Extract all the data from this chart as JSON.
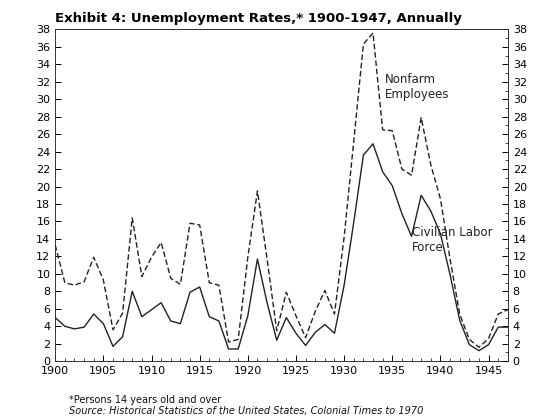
{
  "title": "Exhibit 4: Unemployment Rates,* 1900-1947, Annually",
  "footnote1": "*Persons 14 years old and over",
  "footnote2": "Source: Historical Statistics of the United States, Colonial Times to 1970",
  "ylim": [
    0,
    38
  ],
  "yticks": [
    0,
    2,
    4,
    6,
    8,
    10,
    12,
    14,
    16,
    18,
    20,
    22,
    24,
    26,
    28,
    30,
    32,
    34,
    36,
    38
  ],
  "xticks": [
    1900,
    1905,
    1910,
    1915,
    1920,
    1925,
    1930,
    1935,
    1940,
    1945
  ],
  "years": [
    1900,
    1901,
    1902,
    1903,
    1904,
    1905,
    1906,
    1907,
    1908,
    1909,
    1910,
    1911,
    1912,
    1913,
    1914,
    1915,
    1916,
    1917,
    1918,
    1919,
    1920,
    1921,
    1922,
    1923,
    1924,
    1925,
    1926,
    1927,
    1928,
    1929,
    1930,
    1931,
    1932,
    1933,
    1934,
    1935,
    1936,
    1937,
    1938,
    1939,
    1940,
    1941,
    1942,
    1943,
    1944,
    1945,
    1946,
    1947
  ],
  "civilian_labor_force": [
    5.0,
    4.0,
    3.7,
    3.9,
    5.4,
    4.3,
    1.7,
    2.8,
    8.0,
    5.1,
    5.9,
    6.7,
    4.6,
    4.3,
    7.9,
    8.5,
    5.1,
    4.6,
    1.4,
    1.4,
    5.2,
    11.7,
    6.7,
    2.4,
    5.0,
    3.2,
    1.8,
    3.3,
    4.2,
    3.2,
    8.7,
    15.9,
    23.6,
    24.9,
    21.7,
    20.1,
    16.9,
    14.3,
    19.0,
    17.2,
    14.6,
    9.9,
    4.7,
    1.9,
    1.2,
    1.9,
    3.9,
    3.9
  ],
  "nonfarm_employees": [
    13.3,
    9.0,
    8.7,
    9.1,
    11.9,
    9.3,
    3.6,
    5.5,
    16.4,
    9.7,
    11.9,
    13.6,
    9.5,
    8.8,
    15.8,
    15.6,
    9.0,
    8.7,
    2.2,
    2.5,
    11.9,
    19.5,
    11.7,
    3.5,
    7.9,
    5.2,
    2.7,
    5.7,
    8.1,
    5.4,
    14.2,
    25.2,
    36.3,
    37.6,
    26.5,
    26.4,
    22.0,
    21.3,
    27.9,
    22.5,
    18.6,
    11.7,
    5.4,
    2.5,
    1.6,
    2.6,
    5.4,
    5.9
  ],
  "label_nonfarm": "Nonfarm\nEmployees",
  "label_civilian": "Civilian Labor\nForce",
  "line_color": "#222222",
  "bg_color": "#ffffff",
  "title_fontsize": 9.5,
  "annot_fontsize": 8.5,
  "tick_fontsize": 8,
  "footnote_fontsize": 7
}
